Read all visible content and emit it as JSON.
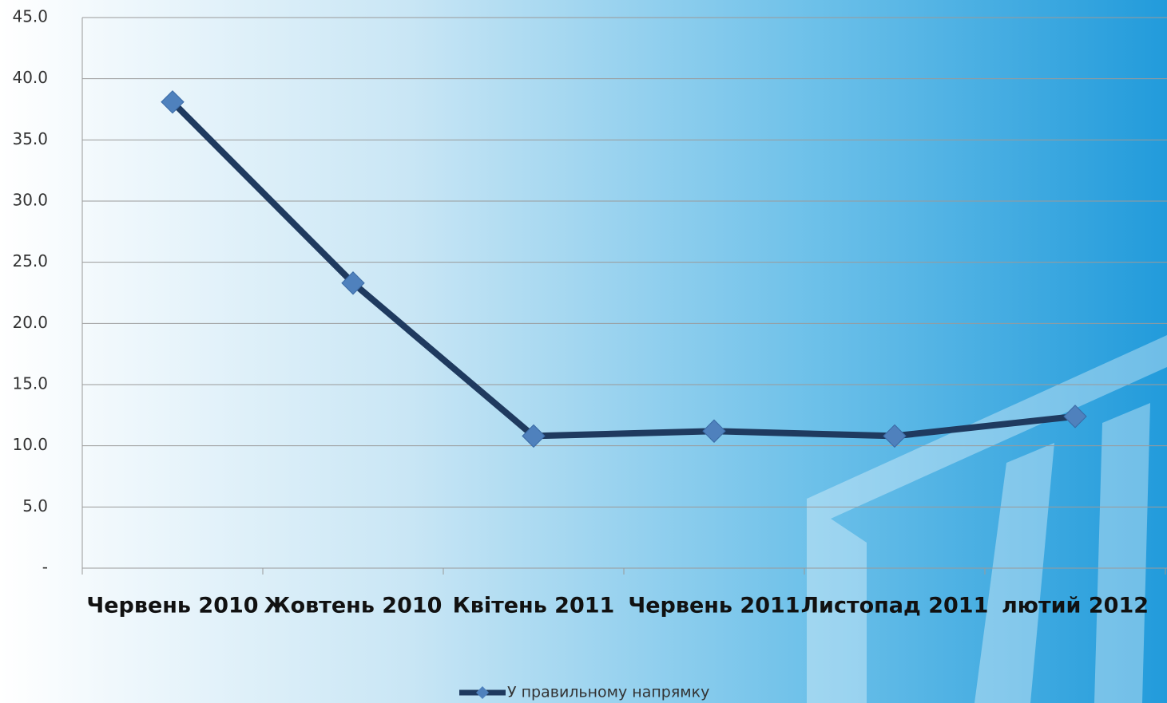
{
  "chart_data": {
    "type": "line",
    "categories": [
      "Червень 2010",
      "Жовтень 2010",
      "Квітень 2011",
      "Червень 2011",
      "Листопад 2011",
      "лютий 2012"
    ],
    "series": [
      {
        "name": "У правильному напрямку",
        "color": "#1f3a5f",
        "marker_color": "#4f81bd",
        "values": [
          38.1,
          23.3,
          10.8,
          11.2,
          10.8,
          12.4
        ]
      }
    ],
    "ylim": [
      0,
      45
    ],
    "yticks": [
      {
        "value": 0,
        "label": "-"
      },
      {
        "value": 5,
        "label": "5.0"
      },
      {
        "value": 10,
        "label": "10.0"
      },
      {
        "value": 15,
        "label": "15.0"
      },
      {
        "value": 20,
        "label": "20.0"
      },
      {
        "value": 25,
        "label": "25.0"
      },
      {
        "value": 30,
        "label": "30.0"
      },
      {
        "value": 35,
        "label": "35.0"
      },
      {
        "value": 40,
        "label": "40.0"
      },
      {
        "value": 45,
        "label": "45.0"
      }
    ],
    "grid": true,
    "legend": "bottom"
  }
}
